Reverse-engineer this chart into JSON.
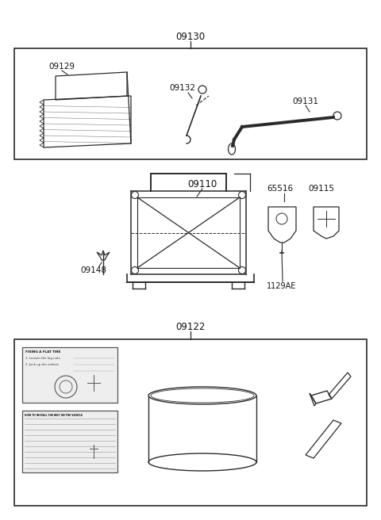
{
  "bg_color": "#ffffff",
  "line_color": "#2a2a2a",
  "text_color": "#111111",
  "labels": {
    "box1": "09130",
    "box3": "09122",
    "p09129": "09129",
    "p09132": "09132",
    "p09131": "09131",
    "p09110": "09110",
    "p09148": "09148",
    "p65516": "65516",
    "p09115": "09115",
    "p1129AE": "1129AE"
  }
}
